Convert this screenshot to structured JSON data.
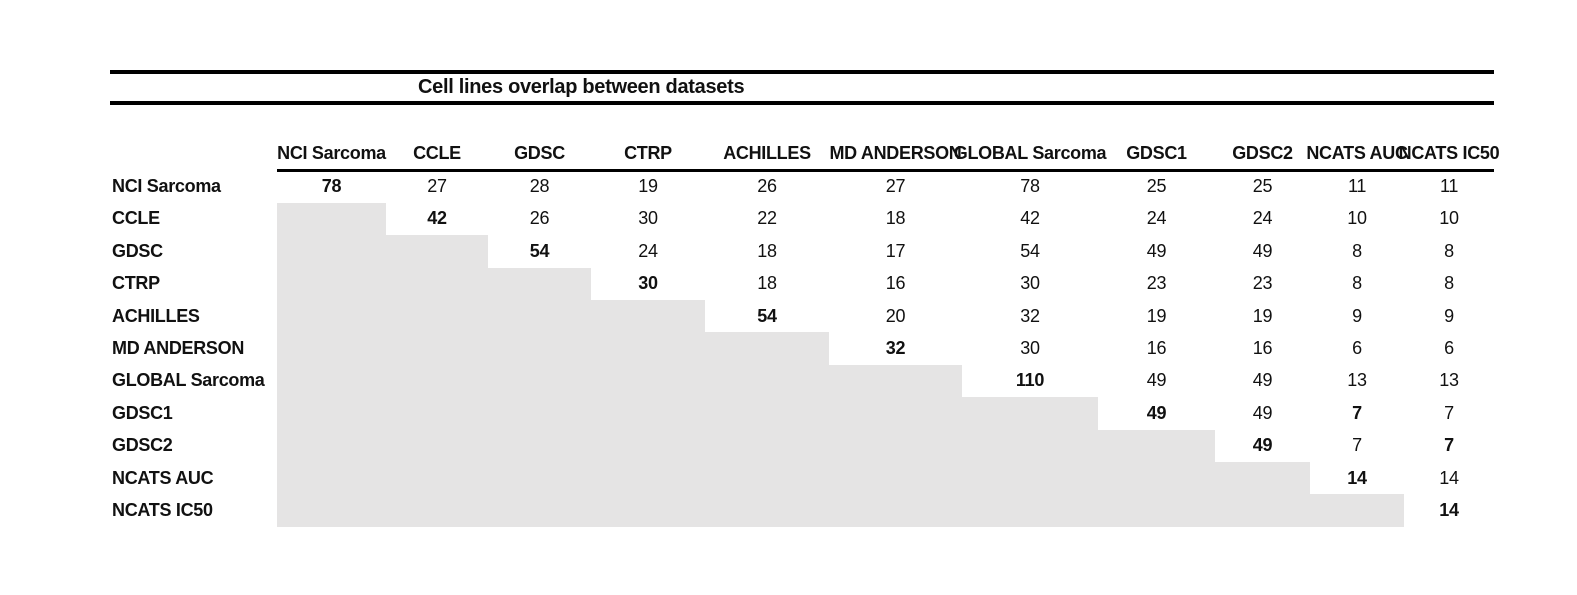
{
  "title": "Cell lines overlap between datasets",
  "colors": {
    "background": "#ffffff",
    "rule": "#000000",
    "text": "#111111",
    "shade": "#e5e4e4"
  },
  "chart_data": {
    "type": "table",
    "title": "Cell lines overlap between datasets",
    "col_labels": [
      "NCI Sarcoma",
      "CCLE",
      "GDSC",
      "CTRP",
      "ACHILLES",
      "MD ANDERSON",
      "GLOBAL Sarcoma",
      "GDSC1",
      "GDSC2",
      "NCATS AUC",
      "NCATS IC50"
    ],
    "row_labels": [
      "NCI Sarcoma",
      "CCLE",
      "GDSC",
      "CTRP",
      "ACHILLES",
      "MD ANDERSON",
      "GLOBAL Sarcoma",
      "GDSC1",
      "GDSC2",
      "NCATS AUC",
      "NCATS IC50"
    ],
    "matrix": [
      [
        78,
        27,
        28,
        19,
        26,
        27,
        78,
        25,
        25,
        11,
        11
      ],
      [
        null,
        42,
        26,
        30,
        22,
        18,
        42,
        24,
        24,
        10,
        10
      ],
      [
        null,
        null,
        54,
        24,
        18,
        17,
        54,
        49,
        49,
        8,
        8
      ],
      [
        null,
        null,
        null,
        30,
        18,
        16,
        30,
        23,
        23,
        8,
        8
      ],
      [
        null,
        null,
        null,
        null,
        54,
        20,
        32,
        19,
        19,
        9,
        9
      ],
      [
        null,
        null,
        null,
        null,
        null,
        32,
        30,
        16,
        16,
        6,
        6
      ],
      [
        null,
        null,
        null,
        null,
        null,
        null,
        110,
        49,
        49,
        13,
        13
      ],
      [
        null,
        null,
        null,
        null,
        null,
        null,
        null,
        49,
        49,
        7,
        7
      ],
      [
        null,
        null,
        null,
        null,
        null,
        null,
        null,
        null,
        49,
        7,
        7
      ],
      [
        null,
        null,
        null,
        null,
        null,
        null,
        null,
        null,
        null,
        14,
        14
      ],
      [
        null,
        null,
        null,
        null,
        null,
        null,
        null,
        null,
        null,
        null,
        14
      ]
    ],
    "diagonal_bold": true,
    "extra_bold_cells": [
      [
        7,
        9
      ],
      [
        8,
        10
      ]
    ],
    "shaded_region": "lower-triangle",
    "legend_position": "none",
    "grid": false
  }
}
